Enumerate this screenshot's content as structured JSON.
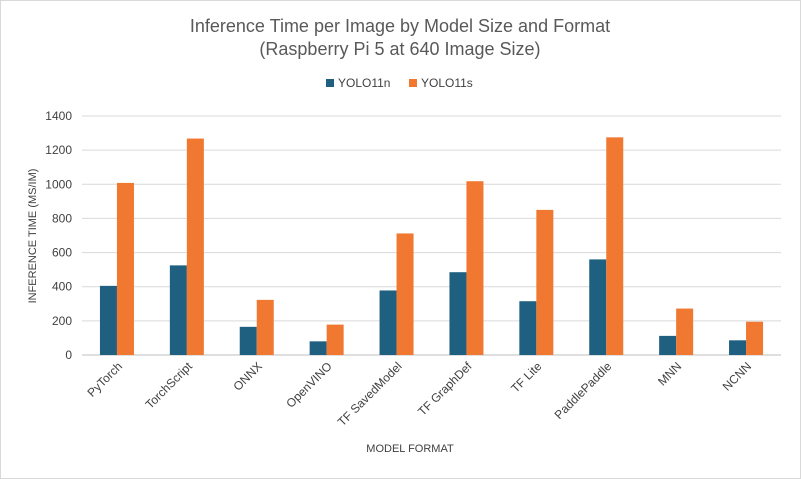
{
  "chart_data": {
    "type": "bar",
    "title": "Inference Time per Image by Model Size and Format",
    "subtitle": "(Raspberry Pi 5 at 640 Image Size)",
    "xlabel": "MODEL FORMAT",
    "ylabel": "INFERENCE TIME (MS/IM)",
    "ylim": [
      0,
      1400
    ],
    "yticks": [
      0,
      200,
      400,
      600,
      800,
      1000,
      1200,
      1400
    ],
    "grid": true,
    "legend_position": "top",
    "categories": [
      "PyTorch",
      "TorchScript",
      "ONNX",
      "OpenVINO",
      "TF SavedModel",
      "TF GraphDef",
      "TF Lite",
      "PaddlePaddle",
      "MNN",
      "NCNN"
    ],
    "series": [
      {
        "name": "YOLO11n",
        "color": "#1f5f80",
        "values": [
          405,
          525,
          165,
          80,
          378,
          485,
          315,
          560,
          112,
          86
        ]
      },
      {
        "name": "YOLO11s",
        "color": "#f07830",
        "values": [
          1008,
          1268,
          323,
          178,
          712,
          1018,
          850,
          1275,
          272,
          195
        ]
      }
    ]
  }
}
